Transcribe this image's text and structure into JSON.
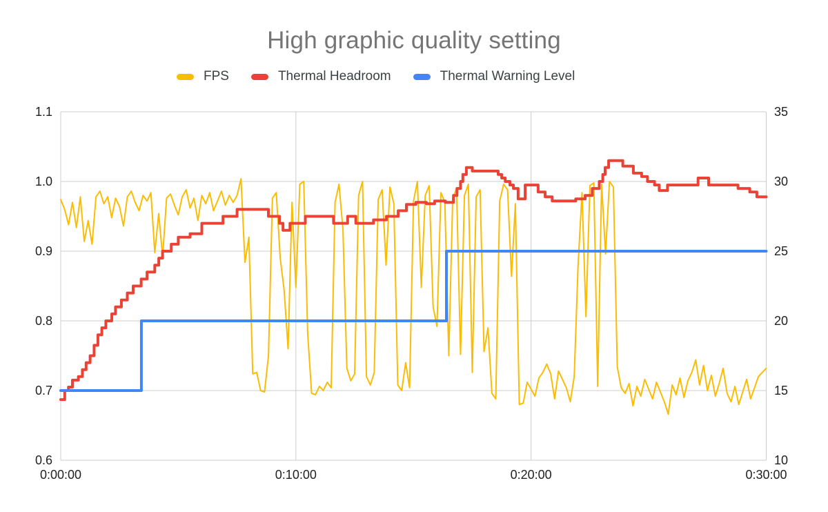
{
  "chart": {
    "title": "High graphic quality setting",
    "title_color": "#757575",
    "background_color": "#ffffff",
    "gridline_color": "#cccccc",
    "axis_text_color": "#212121",
    "legend_text_color": "#3c4043"
  },
  "chart_data": {
    "type": "line",
    "title": "High graphic quality setting",
    "legend_position": "top",
    "grid": "horizontal lines every 0.1 (left axis) / 5 (right axis), vertical lines every 10 minutes",
    "x_axis": {
      "ticks": [
        "0:00:00",
        "0:10:00",
        "0:20:00",
        "0:30:00"
      ],
      "tick_positions_minutes": [
        0,
        10,
        20,
        30
      ],
      "range_minutes": [
        0,
        30
      ]
    },
    "left_axis": {
      "ticks": [
        "1.1",
        "1.0",
        "0.9",
        "0.8",
        "0.7",
        "0.6"
      ],
      "tick_values": [
        1.1,
        1.0,
        0.9,
        0.8,
        0.7,
        0.6
      ],
      "range": [
        0.6,
        1.1
      ]
    },
    "right_axis": {
      "ticks": [
        "35",
        "30",
        "25",
        "20",
        "15",
        "10"
      ],
      "tick_values": [
        35,
        30,
        25,
        20,
        15,
        10
      ],
      "range": [
        10,
        35
      ]
    },
    "series": [
      {
        "name": "FPS",
        "color": "#FBBC04",
        "axis": "right",
        "line_width": 2,
        "interpolation": "linear",
        "sample_interval_seconds": 10,
        "values": [
          28.7,
          28.0,
          26.9,
          28.5,
          26.7,
          28.9,
          25.7,
          27.2,
          25.5,
          28.9,
          29.3,
          28.4,
          28.9,
          27.4,
          28.8,
          28.2,
          26.8,
          28.9,
          29.3,
          28.5,
          27.9,
          29.0,
          28.6,
          29.2,
          24.9,
          27.7,
          24.6,
          28.8,
          29.1,
          28.3,
          27.6,
          28.9,
          29.4,
          28.1,
          28.8,
          27.2,
          29.0,
          28.4,
          29.2,
          27.9,
          28.6,
          29.3,
          28.3,
          29.0,
          28.5,
          29.0,
          30.2,
          24.2,
          26.0,
          16.2,
          16.3,
          15.0,
          14.9,
          17.5,
          28.8,
          29.2,
          24.5,
          22.2,
          18.0,
          28.5,
          22.4,
          29.8,
          30.0,
          19.1,
          14.8,
          14.7,
          15.3,
          15.0,
          15.6,
          15.2,
          28.5,
          29.8,
          26.6,
          16.6,
          15.7,
          16.2,
          29.0,
          30.0,
          16.0,
          15.4,
          16.3,
          28.7,
          29.4,
          24.0,
          29.6,
          28.4,
          15.4,
          15.0,
          17.0,
          15.2,
          28.6,
          30.0,
          22.4,
          29.0,
          29.7,
          21.0,
          19.6,
          29.2,
          28.5,
          17.5,
          28.8,
          29.5,
          17.6,
          29.0,
          29.8,
          16.3,
          28.9,
          29.4,
          17.8,
          19.5,
          14.8,
          14.4,
          28.6,
          29.8,
          29.4,
          23.2,
          28.4,
          14.0,
          14.1,
          15.6,
          15.1,
          14.6,
          15.9,
          16.3,
          16.9,
          16.2,
          14.4,
          16.4,
          15.8,
          15.2,
          14.2,
          16.0,
          24.0,
          29.2,
          20.3,
          29.7,
          29.9,
          15.3,
          29.8,
          24.8,
          30.0,
          29.6,
          16.7,
          15.2,
          14.8,
          15.5,
          13.9,
          15.3,
          14.6,
          15.8,
          15.1,
          14.4,
          15.6,
          14.9,
          14.2,
          13.3,
          15.4,
          14.7,
          15.9,
          14.5,
          15.7,
          16.3,
          17.2,
          15.4,
          16.8,
          15.0,
          16.1,
          14.6,
          15.5,
          16.6,
          14.8,
          14.2,
          15.3,
          14.0,
          14.9,
          15.8,
          14.4,
          15.2,
          16.0,
          16.3,
          16.6
        ]
      },
      {
        "name": "Thermal Headroom",
        "color": "#EA4335",
        "axis": "left",
        "line_width": 4,
        "interpolation": "step-after",
        "points_minutes_value": [
          [
            0,
            0.687
          ],
          [
            0.17,
            0.7
          ],
          [
            0.33,
            0.705
          ],
          [
            0.5,
            0.715
          ],
          [
            0.75,
            0.72
          ],
          [
            0.92,
            0.73
          ],
          [
            1.08,
            0.74
          ],
          [
            1.25,
            0.75
          ],
          [
            1.42,
            0.765
          ],
          [
            1.58,
            0.78
          ],
          [
            1.75,
            0.79
          ],
          [
            1.92,
            0.8
          ],
          [
            2.17,
            0.81
          ],
          [
            2.33,
            0.82
          ],
          [
            2.58,
            0.83
          ],
          [
            2.83,
            0.84
          ],
          [
            3.08,
            0.85
          ],
          [
            3.42,
            0.86
          ],
          [
            3.67,
            0.87
          ],
          [
            4.0,
            0.88
          ],
          [
            4.17,
            0.89
          ],
          [
            4.33,
            0.9
          ],
          [
            4.7,
            0.91
          ],
          [
            5.0,
            0.92
          ],
          [
            5.5,
            0.925
          ],
          [
            6.0,
            0.94
          ],
          [
            6.9,
            0.95
          ],
          [
            7.5,
            0.96
          ],
          [
            8.83,
            0.95
          ],
          [
            9.3,
            0.94
          ],
          [
            9.45,
            0.93
          ],
          [
            9.75,
            0.94
          ],
          [
            10.4,
            0.95
          ],
          [
            11.6,
            0.94
          ],
          [
            12.2,
            0.95
          ],
          [
            12.55,
            0.94
          ],
          [
            13.3,
            0.945
          ],
          [
            13.85,
            0.95
          ],
          [
            14.35,
            0.958
          ],
          [
            14.7,
            0.967
          ],
          [
            15.1,
            0.97
          ],
          [
            15.55,
            0.968
          ],
          [
            15.9,
            0.972
          ],
          [
            16.35,
            0.97
          ],
          [
            16.7,
            0.98
          ],
          [
            16.85,
            0.99
          ],
          [
            17.0,
            1.0
          ],
          [
            17.1,
            1.01
          ],
          [
            17.25,
            1.02
          ],
          [
            17.5,
            1.015
          ],
          [
            18.6,
            1.01
          ],
          [
            18.75,
            1.005
          ],
          [
            18.9,
            1.0
          ],
          [
            19.1,
            0.995
          ],
          [
            19.25,
            0.99
          ],
          [
            19.45,
            0.975
          ],
          [
            19.75,
            0.995
          ],
          [
            20.3,
            0.985
          ],
          [
            20.6,
            0.978
          ],
          [
            20.9,
            0.972
          ],
          [
            21.9,
            0.975
          ],
          [
            22.3,
            0.98
          ],
          [
            22.6,
            0.99
          ],
          [
            22.9,
            1.0
          ],
          [
            23.05,
            1.01
          ],
          [
            23.15,
            1.02
          ],
          [
            23.3,
            1.03
          ],
          [
            23.9,
            1.022
          ],
          [
            24.35,
            1.012
          ],
          [
            24.7,
            1.007
          ],
          [
            24.95,
            1.0
          ],
          [
            25.25,
            0.995
          ],
          [
            25.45,
            0.987
          ],
          [
            25.8,
            0.995
          ],
          [
            27.1,
            1.005
          ],
          [
            27.55,
            0.995
          ],
          [
            28.8,
            0.99
          ],
          [
            29.3,
            0.985
          ],
          [
            29.6,
            0.978
          ],
          [
            30,
            0.978
          ]
        ]
      },
      {
        "name": "Thermal Warning Level",
        "color": "#4285F4",
        "axis": "left",
        "line_width": 4,
        "interpolation": "step-after",
        "points_minutes_value": [
          [
            0,
            0.7
          ],
          [
            3.43,
            0.8
          ],
          [
            16.4,
            0.9
          ],
          [
            30,
            0.9
          ]
        ]
      }
    ]
  }
}
